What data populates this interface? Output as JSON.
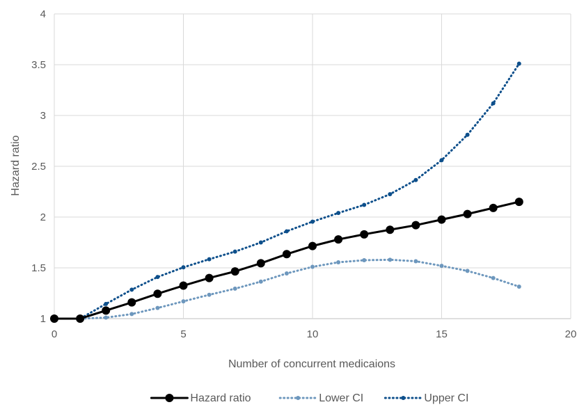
{
  "chart_data": {
    "type": "line",
    "title": "",
    "xlabel": "Number of concurrent medicaions",
    "ylabel": "Hazard ratio",
    "xlim": [
      0,
      20
    ],
    "ylim": [
      1,
      4
    ],
    "xticks": [
      0,
      5,
      10,
      15,
      20
    ],
    "yticks": [
      1,
      1.5,
      2,
      2.5,
      3,
      3.5,
      4
    ],
    "xtick_labels": [
      "0",
      "5",
      "10",
      "15",
      "20"
    ],
    "ytick_labels": [
      "1",
      "1.5",
      "2",
      "2.5",
      "3",
      "3.5",
      "4"
    ],
    "grid": true,
    "legend_position": "bottom",
    "x": [
      0,
      1,
      2,
      3,
      4,
      5,
      6,
      7,
      8,
      9,
      10,
      11,
      12,
      13,
      14,
      15,
      16,
      17,
      18
    ],
    "series": [
      {
        "name": "Hazard ratio",
        "color": "#000000",
        "style": "solid",
        "values": [
          1.0,
          1.0,
          1.08,
          1.16,
          1.245,
          1.325,
          1.4,
          1.465,
          1.545,
          1.635,
          1.715,
          1.78,
          1.83,
          1.875,
          1.92,
          1.975,
          2.03,
          2.09,
          2.15
        ]
      },
      {
        "name": "Lower CI",
        "color": "#6d97bd",
        "style": "dotted",
        "values": [
          1.0,
          1.0,
          1.01,
          1.045,
          1.105,
          1.17,
          1.235,
          1.295,
          1.365,
          1.445,
          1.51,
          1.555,
          1.575,
          1.58,
          1.565,
          1.52,
          1.47,
          1.4,
          1.315
        ]
      },
      {
        "name": "Upper CI",
        "color": "#0d4f8b",
        "style": "dotted",
        "values": [
          1.0,
          1.0,
          1.145,
          1.285,
          1.41,
          1.505,
          1.585,
          1.66,
          1.75,
          1.86,
          1.955,
          2.04,
          2.12,
          2.225,
          2.365,
          2.56,
          2.81,
          3.12,
          3.51
        ]
      }
    ]
  }
}
